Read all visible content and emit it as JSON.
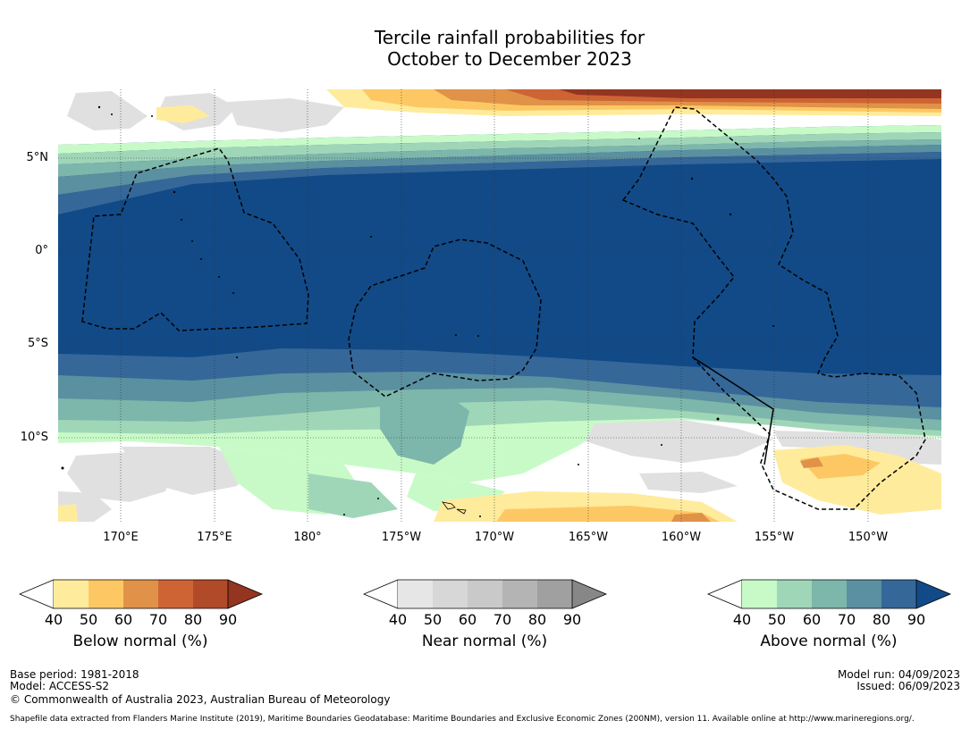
{
  "title": {
    "line1": "Tercile rainfall probabilities for",
    "line2": "October to December 2023"
  },
  "axes": {
    "lat_labels": [
      "5°N",
      "0°",
      "5°S",
      "10°S"
    ],
    "lon_labels": [
      "170°E",
      "175°E",
      "180°",
      "175°W",
      "170°W",
      "165°W",
      "160°W",
      "155°W",
      "150°W"
    ]
  },
  "legends": [
    {
      "caption": "Below normal (%)",
      "ticks": [
        "40",
        "50",
        "60",
        "70",
        "80",
        "90"
      ],
      "colors": [
        "#ffffff",
        "#ffeb9c",
        "#fdc863",
        "#e09248",
        "#ce6434",
        "#b04a28",
        "#933520"
      ]
    },
    {
      "caption": "Near normal (%)",
      "ticks": [
        "40",
        "50",
        "60",
        "70",
        "80",
        "90"
      ],
      "colors": [
        "#ffffff",
        "#e6e6e6",
        "#d7d7d7",
        "#c9c9c9",
        "#b4b4b4",
        "#a0a0a0",
        "#878787"
      ]
    },
    {
      "caption": "Above normal (%)",
      "ticks": [
        "40",
        "50",
        "60",
        "70",
        "80",
        "90"
      ],
      "colors": [
        "#ffffff",
        "#c8fac8",
        "#a0d6b8",
        "#7db6ab",
        "#5b90a0",
        "#356799",
        "#124a87"
      ]
    }
  ],
  "footer": {
    "base_period": "Base period: 1981-2018",
    "model": "Model: ACCESS-S2",
    "copyright": "© Commonwealth of Australia 2023, Australian Bureau of Meteorology",
    "model_run": "Model run: 04/09/2023",
    "issued": "Issued: 06/09/2023",
    "shapefile": "Shapefile data extracted from Flanders Marine Institute (2019), Maritime Boundaries Geodatabase: Maritime Boundaries and Exclusive Economic Zones (200NM), version 11. Available online at http://www.marineregions.org/."
  }
}
